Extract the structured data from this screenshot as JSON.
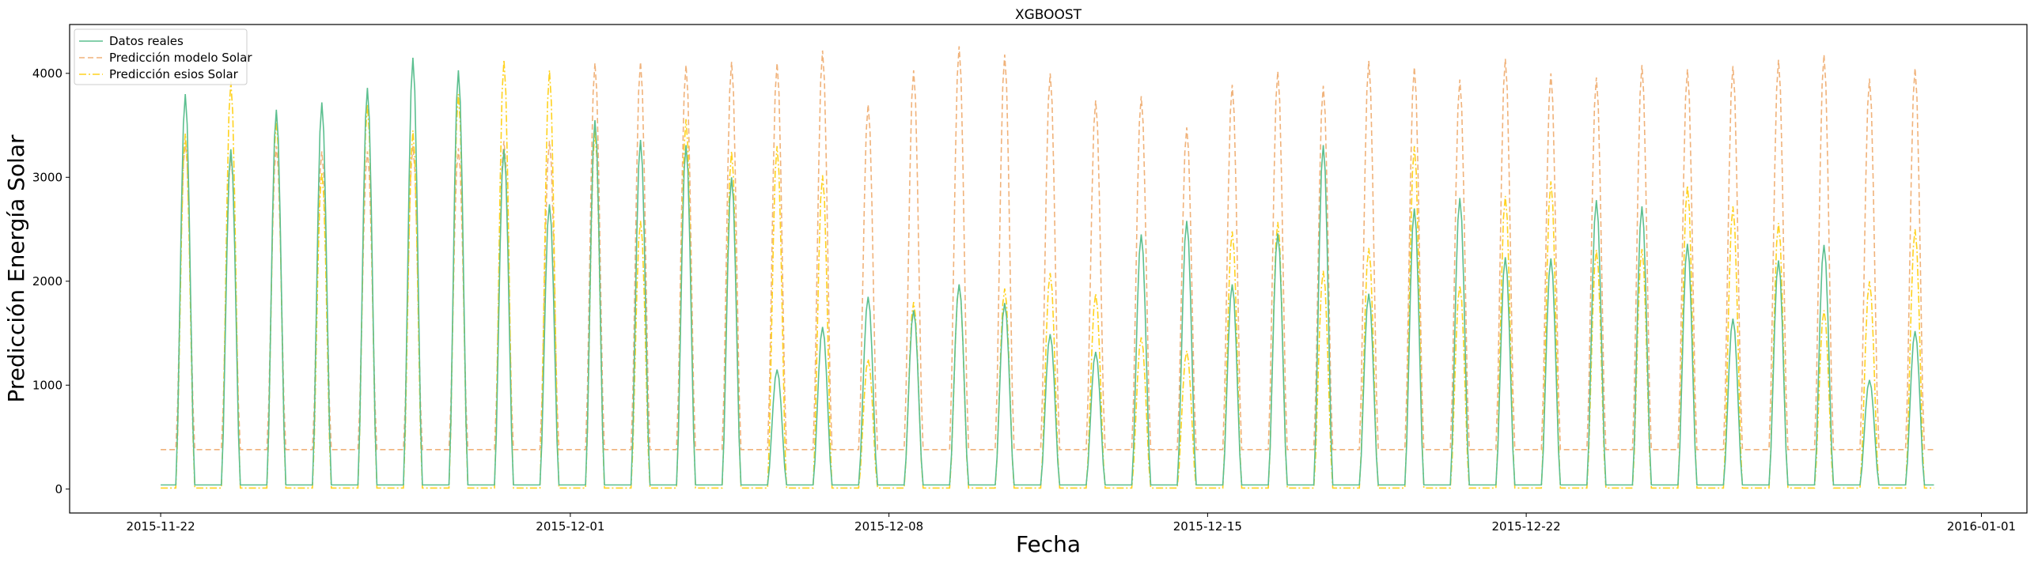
{
  "chart_data": {
    "type": "line",
    "title": "XGBOOST",
    "xlabel": "Fecha",
    "ylabel": "Predicción Energía Solar",
    "x_range": [
      "2015-11-20",
      "2016-01-02"
    ],
    "ylim": [
      -230,
      4470
    ],
    "x_ticks": [
      "2015-11-22",
      "2015-12-01",
      "2015-12-08",
      "2015-12-15",
      "2015-12-22",
      "2016-01-01"
    ],
    "y_ticks": [
      0,
      1000,
      2000,
      3000,
      4000
    ],
    "y_tick_labels": [
      "0",
      "1000",
      "2000",
      "3000",
      "4000"
    ],
    "grid": false,
    "legend_position": "upper-left",
    "resolution": "hourly",
    "series": [
      {
        "name": "Datos reales",
        "color": "#5bbf8f",
        "style": "solid",
        "daily_peaks": [
          {
            "date": "2015-11-22",
            "peak": 3800
          },
          {
            "date": "2015-11-23",
            "peak": 3270
          },
          {
            "date": "2015-11-24",
            "peak": 3650
          },
          {
            "date": "2015-11-25",
            "peak": 3720
          },
          {
            "date": "2015-11-26",
            "peak": 3860
          },
          {
            "date": "2015-11-27",
            "peak": 4150
          },
          {
            "date": "2015-11-28",
            "peak": 4030
          },
          {
            "date": "2015-11-29",
            "peak": 3270
          },
          {
            "date": "2015-11-30",
            "peak": 2740
          },
          {
            "date": "2015-12-01",
            "peak": 3550
          },
          {
            "date": "2015-12-02",
            "peak": 3360
          },
          {
            "date": "2015-12-03",
            "peak": 3310
          },
          {
            "date": "2015-12-04",
            "peak": 3000
          },
          {
            "date": "2015-12-05",
            "peak": 1150
          },
          {
            "date": "2015-12-06",
            "peak": 1560
          },
          {
            "date": "2015-12-07",
            "peak": 1850
          },
          {
            "date": "2015-12-08",
            "peak": 1720
          },
          {
            "date": "2015-12-09",
            "peak": 1970
          },
          {
            "date": "2015-12-10",
            "peak": 1790
          },
          {
            "date": "2015-12-11",
            "peak": 1490
          },
          {
            "date": "2015-12-12",
            "peak": 1320
          },
          {
            "date": "2015-12-13",
            "peak": 2450
          },
          {
            "date": "2015-12-14",
            "peak": 2580
          },
          {
            "date": "2015-12-15",
            "peak": 1970
          },
          {
            "date": "2015-12-16",
            "peak": 2460
          },
          {
            "date": "2015-12-17",
            "peak": 3310
          },
          {
            "date": "2015-12-18",
            "peak": 1880
          },
          {
            "date": "2015-12-19",
            "peak": 2700
          },
          {
            "date": "2015-12-20",
            "peak": 2800
          },
          {
            "date": "2015-12-21",
            "peak": 2230
          },
          {
            "date": "2015-12-22",
            "peak": 2220
          },
          {
            "date": "2015-12-23",
            "peak": 2780
          },
          {
            "date": "2015-12-24",
            "peak": 2720
          },
          {
            "date": "2015-12-25",
            "peak": 2360
          },
          {
            "date": "2015-12-26",
            "peak": 1640
          },
          {
            "date": "2015-12-27",
            "peak": 2200
          },
          {
            "date": "2015-12-28",
            "peak": 2350
          },
          {
            "date": "2015-12-29",
            "peak": 1050
          },
          {
            "date": "2015-12-30",
            "peak": 1520
          }
        ],
        "night_level": 40
      },
      {
        "name": "Predicción modelo Solar",
        "color": "#f0b27a",
        "style": "dashed",
        "daily_peaks": [
          {
            "date": "2015-11-22",
            "peak": 3350
          },
          {
            "date": "2015-11-23",
            "peak": 3200
          },
          {
            "date": "2015-11-24",
            "peak": 3300
          },
          {
            "date": "2015-11-25",
            "peak": 3250
          },
          {
            "date": "2015-11-26",
            "peak": 3250
          },
          {
            "date": "2015-11-27",
            "peak": 3300
          },
          {
            "date": "2015-11-28",
            "peak": 3280
          },
          {
            "date": "2015-11-29",
            "peak": 3350
          },
          {
            "date": "2015-11-30",
            "peak": 3350
          },
          {
            "date": "2015-12-01",
            "peak": 4100
          },
          {
            "date": "2015-12-02",
            "peak": 4110
          },
          {
            "date": "2015-12-03",
            "peak": 4080
          },
          {
            "date": "2015-12-04",
            "peak": 4110
          },
          {
            "date": "2015-12-05",
            "peak": 4100
          },
          {
            "date": "2015-12-06",
            "peak": 4220
          },
          {
            "date": "2015-12-07",
            "peak": 3700
          },
          {
            "date": "2015-12-08",
            "peak": 4030
          },
          {
            "date": "2015-12-09",
            "peak": 4260
          },
          {
            "date": "2015-12-10",
            "peak": 4180
          },
          {
            "date": "2015-12-11",
            "peak": 4000
          },
          {
            "date": "2015-12-12",
            "peak": 3740
          },
          {
            "date": "2015-12-13",
            "peak": 3780
          },
          {
            "date": "2015-12-14",
            "peak": 3480
          },
          {
            "date": "2015-12-15",
            "peak": 3890
          },
          {
            "date": "2015-12-16",
            "peak": 4020
          },
          {
            "date": "2015-12-17",
            "peak": 3880
          },
          {
            "date": "2015-12-18",
            "peak": 4120
          },
          {
            "date": "2015-12-19",
            "peak": 4060
          },
          {
            "date": "2015-12-20",
            "peak": 3940
          },
          {
            "date": "2015-12-21",
            "peak": 4140
          },
          {
            "date": "2015-12-22",
            "peak": 4000
          },
          {
            "date": "2015-12-23",
            "peak": 3960
          },
          {
            "date": "2015-12-24",
            "peak": 4080
          },
          {
            "date": "2015-12-25",
            "peak": 4040
          },
          {
            "date": "2015-12-26",
            "peak": 4070
          },
          {
            "date": "2015-12-27",
            "peak": 4130
          },
          {
            "date": "2015-12-28",
            "peak": 4180
          },
          {
            "date": "2015-12-29",
            "peak": 3950
          },
          {
            "date": "2015-12-30",
            "peak": 4050
          }
        ],
        "night_level": 380
      },
      {
        "name": "Predicción esios Solar",
        "color": "#ffd21f",
        "style": "dashdot",
        "daily_peaks": [
          {
            "date": "2015-11-22",
            "peak": 3420
          },
          {
            "date": "2015-11-23",
            "peak": 3920
          },
          {
            "date": "2015-11-24",
            "peak": 3550
          },
          {
            "date": "2015-11-25",
            "peak": 3050
          },
          {
            "date": "2015-11-26",
            "peak": 3700
          },
          {
            "date": "2015-11-27",
            "peak": 3450
          },
          {
            "date": "2015-11-28",
            "peak": 3800
          },
          {
            "date": "2015-11-29",
            "peak": 4130
          },
          {
            "date": "2015-11-30",
            "peak": 4030
          },
          {
            "date": "2015-12-01",
            "peak": 3450
          },
          {
            "date": "2015-12-02",
            "peak": 2580
          },
          {
            "date": "2015-12-03",
            "peak": 3560
          },
          {
            "date": "2015-12-04",
            "peak": 3250
          },
          {
            "date": "2015-12-05",
            "peak": 3300
          },
          {
            "date": "2015-12-06",
            "peak": 3020
          },
          {
            "date": "2015-12-07",
            "peak": 1250
          },
          {
            "date": "2015-12-08",
            "peak": 1800
          },
          {
            "date": "2015-12-09",
            "peak": 1960
          },
          {
            "date": "2015-12-10",
            "peak": 1930
          },
          {
            "date": "2015-12-11",
            "peak": 2080
          },
          {
            "date": "2015-12-12",
            "peak": 1880
          },
          {
            "date": "2015-12-13",
            "peak": 1460
          },
          {
            "date": "2015-12-14",
            "peak": 1330
          },
          {
            "date": "2015-12-15",
            "peak": 2480
          },
          {
            "date": "2015-12-16",
            "peak": 2570
          },
          {
            "date": "2015-12-17",
            "peak": 2100
          },
          {
            "date": "2015-12-18",
            "peak": 2320
          },
          {
            "date": "2015-12-19",
            "peak": 3300
          },
          {
            "date": "2015-12-20",
            "peak": 1960
          },
          {
            "date": "2015-12-21",
            "peak": 2820
          },
          {
            "date": "2015-12-22",
            "peak": 2960
          },
          {
            "date": "2015-12-23",
            "peak": 2300
          },
          {
            "date": "2015-12-24",
            "peak": 2310
          },
          {
            "date": "2015-12-25",
            "peak": 2920
          },
          {
            "date": "2015-12-26",
            "peak": 2720
          },
          {
            "date": "2015-12-27",
            "peak": 2560
          },
          {
            "date": "2015-12-28",
            "peak": 1720
          },
          {
            "date": "2015-12-29",
            "peak": 2000
          },
          {
            "date": "2015-12-30",
            "peak": 2500
          }
        ],
        "night_level": 10
      }
    ]
  }
}
